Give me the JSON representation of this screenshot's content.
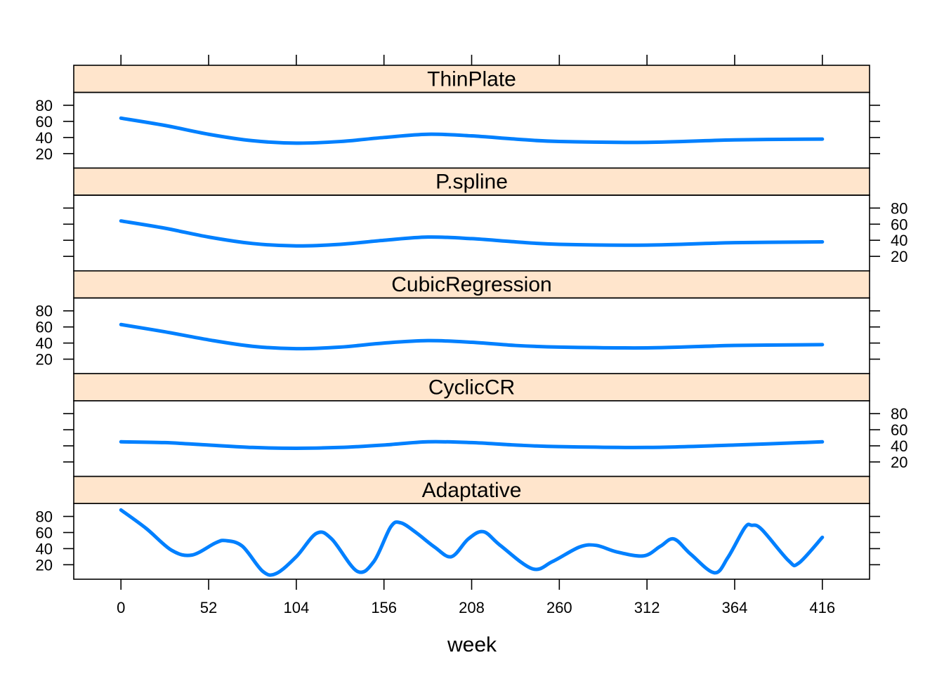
{
  "chart_data": {
    "type": "line",
    "layout": "stacked-panels",
    "xlabel": "week",
    "x_ticks": [
      0,
      52,
      104,
      156,
      208,
      260,
      312,
      364,
      416
    ],
    "y_ticks": [
      20,
      40,
      60,
      80
    ],
    "xlim": [
      -28,
      444
    ],
    "ylim": [
      2,
      96
    ],
    "colors": {
      "line": "#0080ff",
      "strip": "#ffe5cc"
    },
    "panels": [
      {
        "name": "ThinPlate",
        "y_axis_side": "left",
        "points": [
          [
            0,
            64
          ],
          [
            26,
            55
          ],
          [
            52,
            44
          ],
          [
            78,
            36
          ],
          [
            104,
            33
          ],
          [
            130,
            35
          ],
          [
            156,
            40
          ],
          [
            182,
            44
          ],
          [
            208,
            42
          ],
          [
            234,
            38
          ],
          [
            260,
            35
          ],
          [
            312,
            34
          ],
          [
            364,
            37
          ],
          [
            416,
            38
          ]
        ]
      },
      {
        "name": "P.spline",
        "y_axis_side": "right",
        "points": [
          [
            0,
            64
          ],
          [
            26,
            55
          ],
          [
            52,
            44
          ],
          [
            78,
            36
          ],
          [
            104,
            33
          ],
          [
            130,
            35
          ],
          [
            156,
            40
          ],
          [
            182,
            44
          ],
          [
            208,
            42
          ],
          [
            234,
            38
          ],
          [
            260,
            35
          ],
          [
            312,
            34
          ],
          [
            364,
            37
          ],
          [
            416,
            38
          ]
        ]
      },
      {
        "name": "CubicRegression",
        "y_axis_side": "left",
        "points": [
          [
            0,
            63
          ],
          [
            26,
            54
          ],
          [
            52,
            44
          ],
          [
            78,
            36
          ],
          [
            104,
            33
          ],
          [
            130,
            35
          ],
          [
            156,
            40
          ],
          [
            182,
            43
          ],
          [
            208,
            41
          ],
          [
            234,
            37
          ],
          [
            260,
            35
          ],
          [
            312,
            34
          ],
          [
            364,
            37
          ],
          [
            416,
            38
          ]
        ]
      },
      {
        "name": "CyclicCR",
        "y_axis_side": "right",
        "points": [
          [
            0,
            45
          ],
          [
            26,
            44
          ],
          [
            52,
            41
          ],
          [
            78,
            38
          ],
          [
            104,
            37
          ],
          [
            130,
            38
          ],
          [
            156,
            41
          ],
          [
            182,
            45
          ],
          [
            208,
            44
          ],
          [
            234,
            41
          ],
          [
            260,
            39
          ],
          [
            312,
            38
          ],
          [
            364,
            41
          ],
          [
            416,
            45
          ]
        ]
      },
      {
        "name": "Adaptative",
        "y_axis_side": "left",
        "points": [
          [
            0,
            88
          ],
          [
            15,
            65
          ],
          [
            30,
            38
          ],
          [
            42,
            32
          ],
          [
            56,
            47
          ],
          [
            62,
            50
          ],
          [
            72,
            43
          ],
          [
            84,
            12
          ],
          [
            92,
            9
          ],
          [
            104,
            30
          ],
          [
            116,
            59
          ],
          [
            125,
            52
          ],
          [
            140,
            12
          ],
          [
            150,
            24
          ],
          [
            160,
            67
          ],
          [
            166,
            72
          ],
          [
            175,
            60
          ],
          [
            186,
            42
          ],
          [
            196,
            30
          ],
          [
            206,
            52
          ],
          [
            215,
            61
          ],
          [
            225,
            44
          ],
          [
            244,
            15
          ],
          [
            256,
            24
          ],
          [
            272,
            42
          ],
          [
            282,
            44
          ],
          [
            294,
            36
          ],
          [
            310,
            31
          ],
          [
            320,
            43
          ],
          [
            328,
            52
          ],
          [
            338,
            33
          ],
          [
            352,
            10
          ],
          [
            360,
            29
          ],
          [
            370,
            66
          ],
          [
            374,
            69
          ],
          [
            380,
            64
          ],
          [
            396,
            25
          ],
          [
            402,
            22
          ],
          [
            416,
            54
          ]
        ]
      }
    ]
  }
}
